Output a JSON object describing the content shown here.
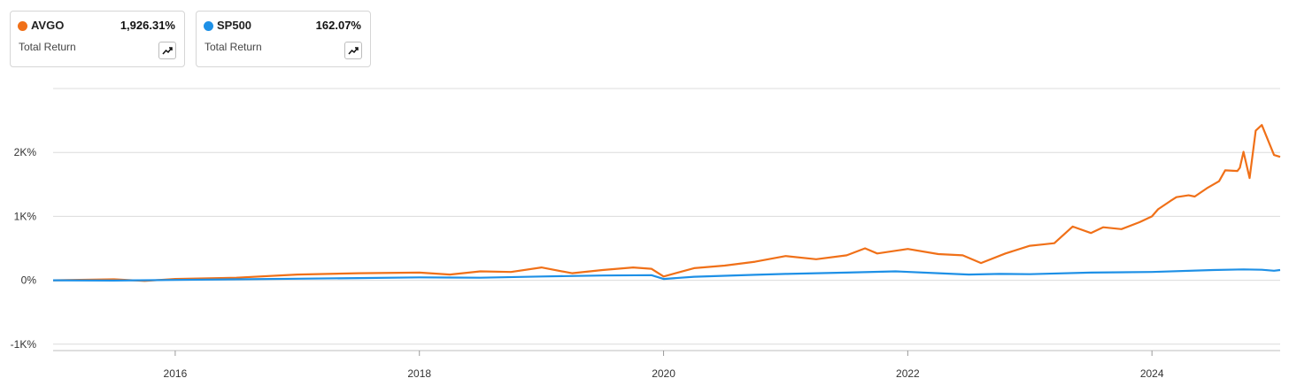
{
  "legend": [
    {
      "ticker": "AVGO",
      "value": "1,926.31%",
      "subtitle": "Total Return",
      "color": "#f07018",
      "icon": "trend-up-icon"
    },
    {
      "ticker": "SP500",
      "value": "162.07%",
      "subtitle": "Total Return",
      "color": "#1e90e6",
      "icon": "trend-up-icon"
    }
  ],
  "chart_data": {
    "type": "line",
    "title": "",
    "xlabel": "",
    "ylabel": "",
    "x_ticks": [
      "2016",
      "2018",
      "2020",
      "2022",
      "2024"
    ],
    "y_ticks": [
      "-1K%",
      "0%",
      "1K%",
      "2K%"
    ],
    "xlim": [
      2015.0,
      2025.05
    ],
    "ylim": [
      -1100,
      3000
    ],
    "grid": "horizontal",
    "series": [
      {
        "name": "AVGO",
        "color": "#f07018",
        "x": [
          2015.0,
          2015.5,
          2015.75,
          2016.0,
          2016.5,
          2017.0,
          2017.5,
          2018.0,
          2018.25,
          2018.5,
          2018.75,
          2019.0,
          2019.25,
          2019.5,
          2019.75,
          2019.9,
          2020.0,
          2020.25,
          2020.5,
          2020.75,
          2021.0,
          2021.25,
          2021.5,
          2021.65,
          2021.75,
          2022.0,
          2022.25,
          2022.45,
          2022.6,
          2022.8,
          2023.0,
          2023.1,
          2023.2,
          2023.35,
          2023.5,
          2023.6,
          2023.75,
          2023.9,
          2024.0,
          2024.05,
          2024.15,
          2024.2,
          2024.3,
          2024.35,
          2024.45,
          2024.55,
          2024.6,
          2024.7,
          2024.72,
          2024.75,
          2024.8,
          2024.85,
          2024.9,
          2025.0,
          2025.05
        ],
        "y": [
          0,
          15,
          -10,
          20,
          40,
          90,
          110,
          120,
          90,
          140,
          130,
          200,
          110,
          160,
          200,
          180,
          60,
          190,
          230,
          290,
          380,
          330,
          390,
          500,
          420,
          490,
          410,
          390,
          270,
          420,
          540,
          560,
          580,
          840,
          740,
          830,
          800,
          910,
          1000,
          1110,
          1240,
          1300,
          1330,
          1310,
          1440,
          1550,
          1720,
          1710,
          1760,
          2010,
          1600,
          2340,
          2430,
          1960,
          1930
        ]
      },
      {
        "name": "SP500",
        "color": "#1e90e6",
        "x": [
          2015.0,
          2015.5,
          2016.0,
          2016.5,
          2017.0,
          2017.5,
          2018.0,
          2018.5,
          2019.0,
          2019.5,
          2019.9,
          2020.0,
          2020.25,
          2020.5,
          2020.75,
          2021.0,
          2021.5,
          2021.9,
          2022.25,
          2022.5,
          2022.75,
          2023.0,
          2023.5,
          2024.0,
          2024.5,
          2024.75,
          2024.9,
          2025.0,
          2025.05
        ],
        "y": [
          0,
          -5,
          5,
          15,
          25,
          35,
          45,
          40,
          60,
          75,
          80,
          20,
          55,
          70,
          85,
          100,
          120,
          140,
          110,
          90,
          100,
          95,
          120,
          130,
          160,
          170,
          165,
          150,
          160
        ]
      }
    ]
  }
}
